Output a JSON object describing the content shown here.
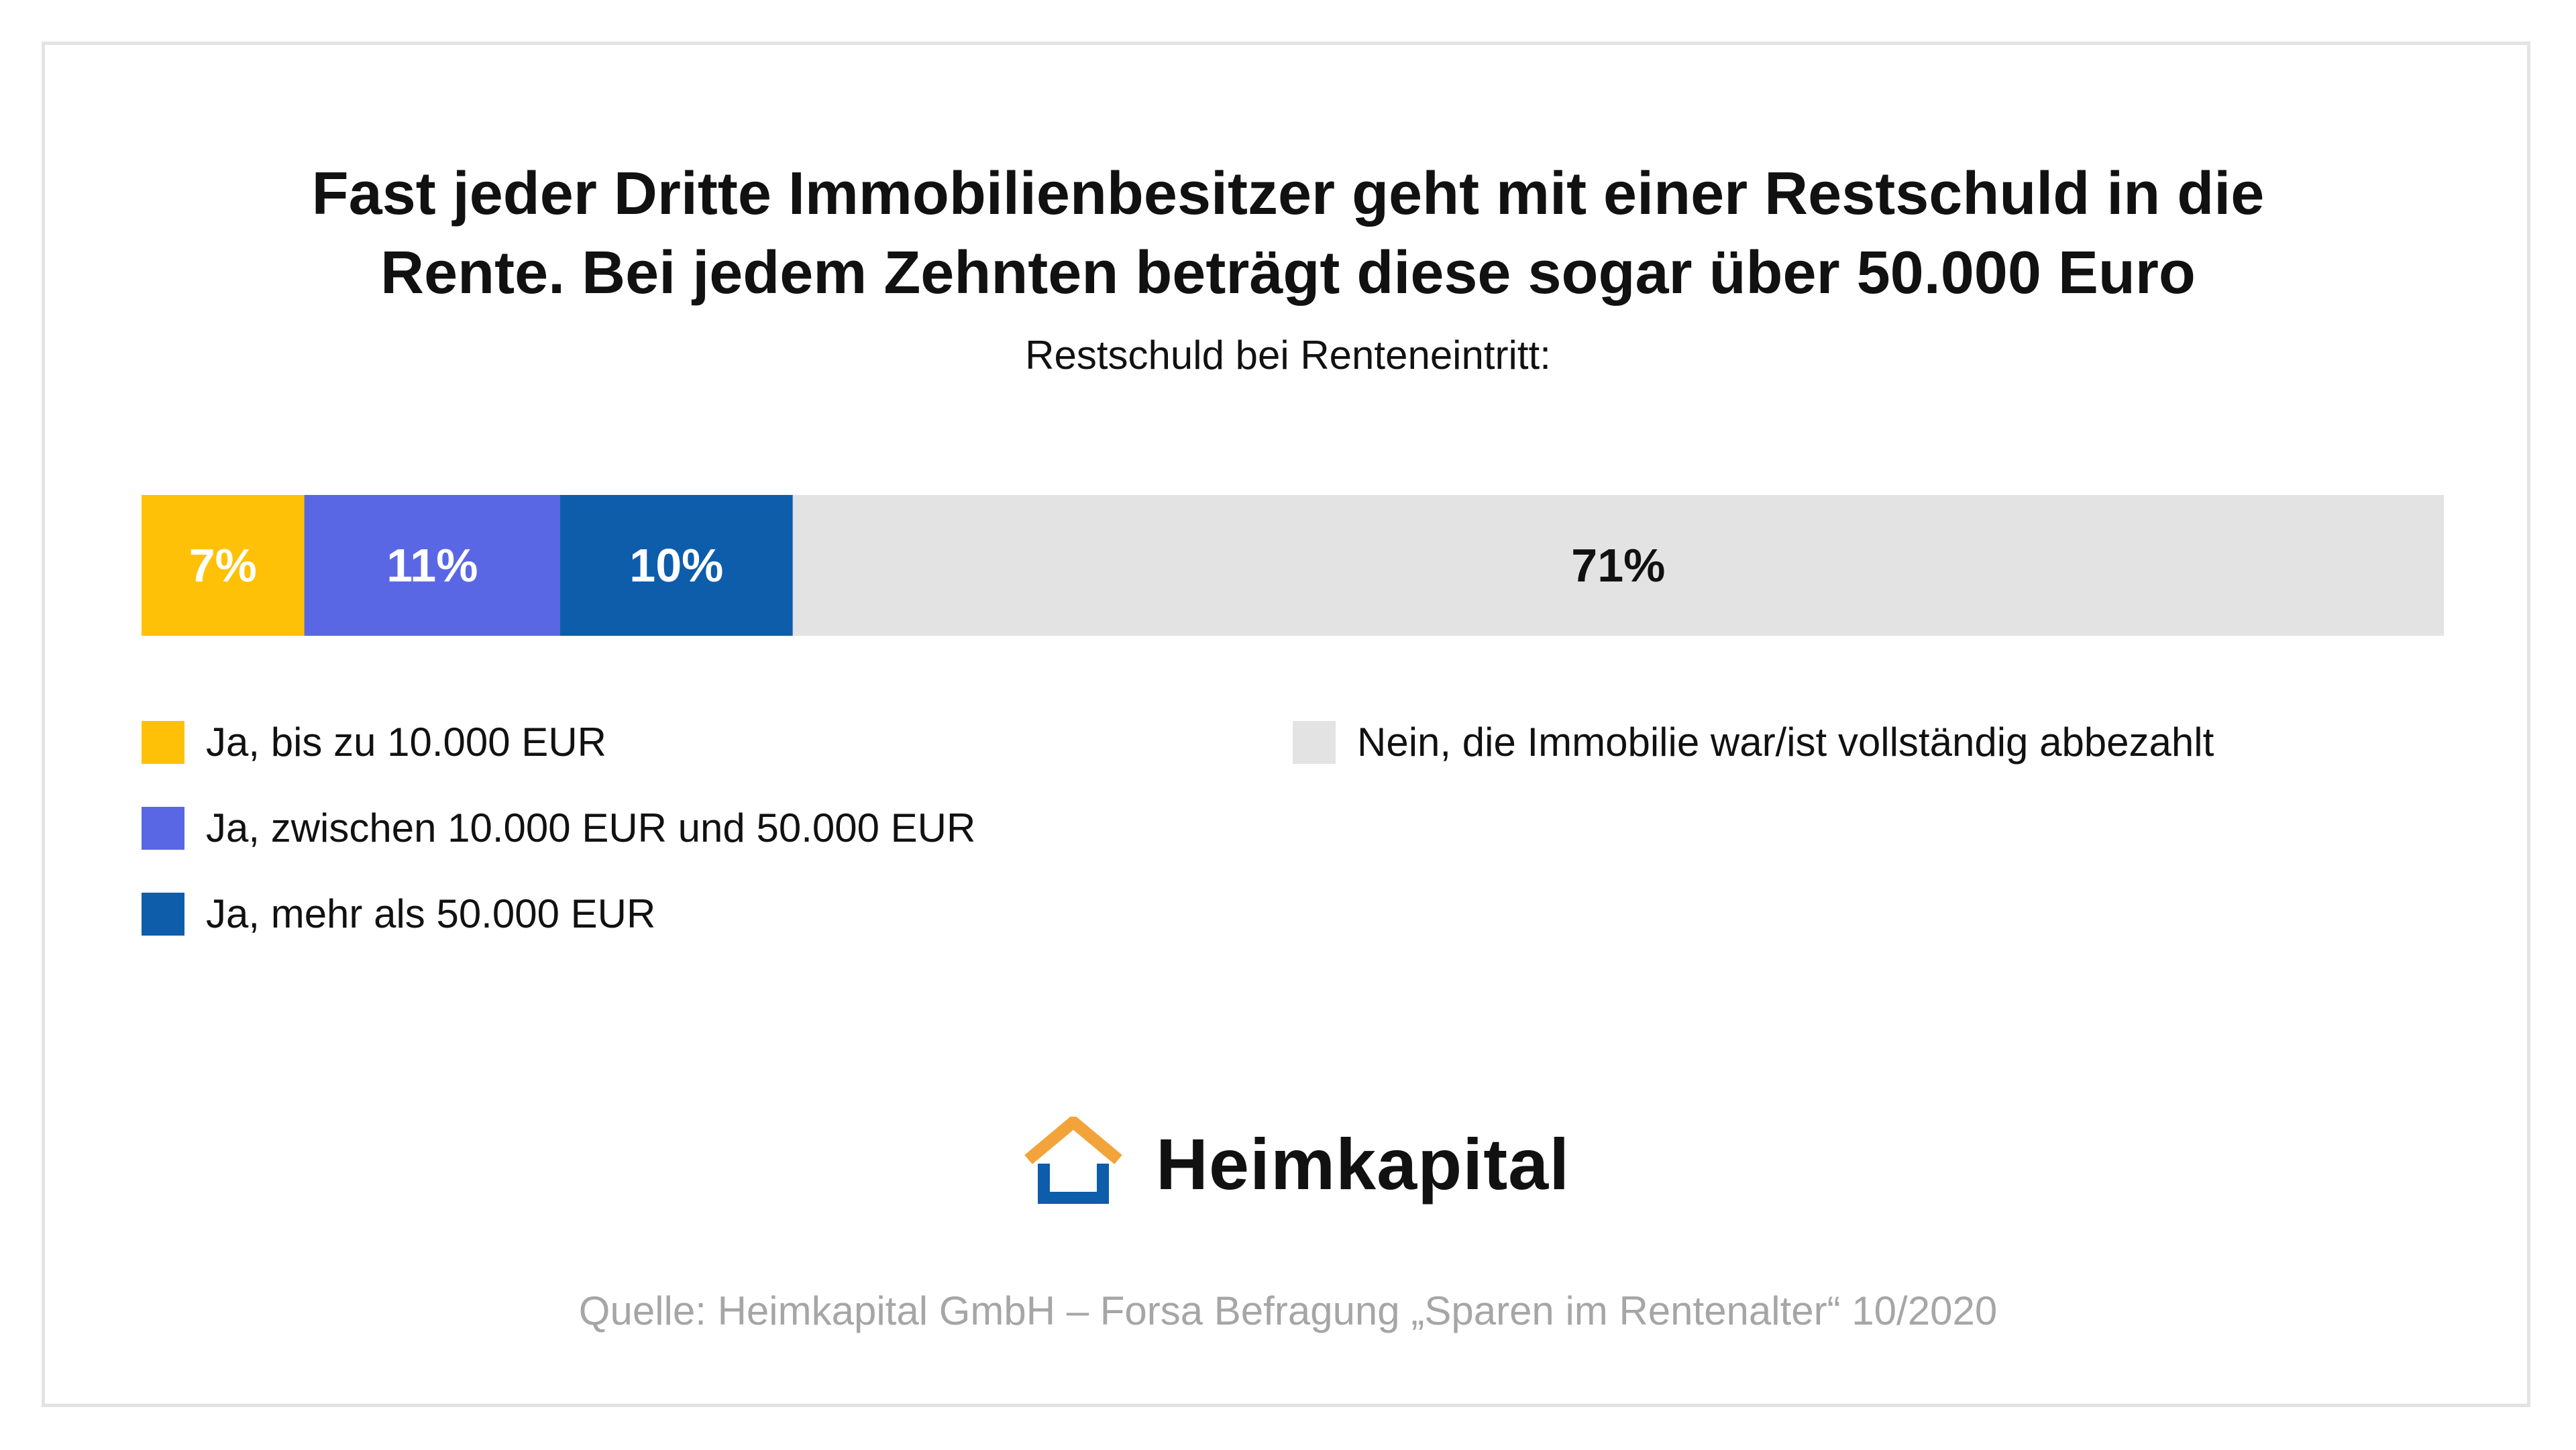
{
  "title": {
    "line1": "Fast jeder Dritte Immobilienbesitzer geht mit einer Restschuld in die",
    "line2": "Rente. Bei jedem Zehnten beträgt diese sogar über 50.000 Euro"
  },
  "subtitle": "Restschuld bei Renteneintritt:",
  "colors": {
    "yellow": "#FFC107",
    "purple": "#5A67E4",
    "blue": "#0D5DAB",
    "gray": "#E3E3E3",
    "logo_orange": "#F2A43A",
    "logo_blue": "#0D5DAB"
  },
  "chart_data": {
    "type": "bar",
    "orientation": "horizontal-stacked",
    "categories": [
      "Restschuld bei Renteneintritt"
    ],
    "series": [
      {
        "name": "Ja, bis zu 10.000 EUR",
        "values": [
          7
        ],
        "label": "7%",
        "color": "#FFC107",
        "label_color": "#ffffff"
      },
      {
        "name": "Ja, zwischen 10.000 EUR und 50.000 EUR",
        "values": [
          11
        ],
        "label": "11%",
        "color": "#5A67E4",
        "label_color": "#ffffff"
      },
      {
        "name": "Ja, mehr als 50.000 EUR",
        "values": [
          10
        ],
        "label": "10%",
        "color": "#0D5DAB",
        "label_color": "#ffffff"
      },
      {
        "name": "Nein, die Immobilie war/ist vollständig abbezahlt",
        "values": [
          71
        ],
        "label": "71%",
        "color": "#E3E3E3",
        "label_color": "#111111"
      }
    ],
    "legend_position": "bottom"
  },
  "legend": [
    {
      "label": "Ja, bis zu 10.000 EUR",
      "color": "#FFC107"
    },
    {
      "label": "Ja, zwischen 10.000 EUR und 50.000 EUR",
      "color": "#5A67E4"
    },
    {
      "label": "Ja, mehr als 50.000 EUR",
      "color": "#0D5DAB"
    },
    {
      "label": "Nein, die Immobilie war/ist vollständig abbezahlt",
      "color": "#E3E3E3"
    }
  ],
  "logo": {
    "text": "Heimkapital",
    "icon": "house-icon"
  },
  "source": "Quelle: Heimkapital GmbH – Forsa Befragung  „Sparen im Rentenalter“ 10/2020"
}
